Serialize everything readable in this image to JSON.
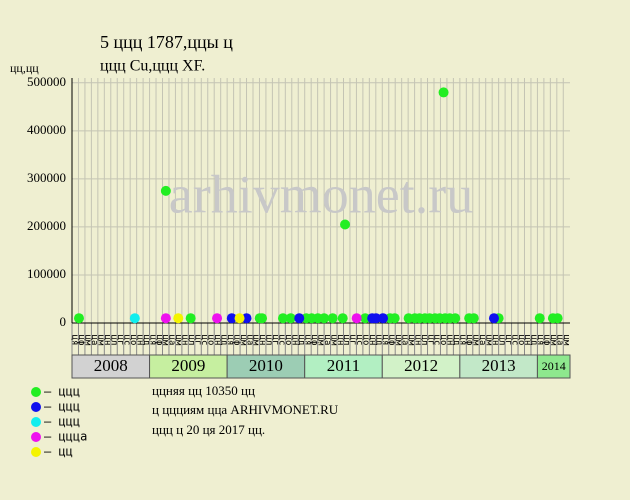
{
  "chart_data": {
    "type": "scatter",
    "title": [
      "5 ццц 1787,ццы ц",
      "ццц Cu,ццц XF."
    ],
    "y_label": "цц,цц",
    "watermark": "arhivmonet.ru",
    "notes": [
      "ццняя цц 10350 цц",
      "ц ццциям цца ARHIVMONET.RU",
      "ццц ц 20 ця 2017 цц."
    ],
    "months": [
      "ця",
      "цф",
      "цм",
      "ца",
      "цм",
      "цн",
      "цл",
      "цг",
      "цс",
      "цо",
      "цн",
      "цд"
    ],
    "xlim": [
      2008,
      2014.42
    ],
    "xticks": [
      2008,
      2009,
      2010,
      2011,
      2012,
      2013,
      2014
    ],
    "year_colors": [
      "#d2d2d2",
      "#c6efa0",
      "#9ccdb4",
      "#b2efc2",
      "#d2f2c8",
      "#c2e8c8",
      "#8ee88e"
    ],
    "ylim": [
      0,
      510000
    ],
    "yticks": [
      0,
      100000,
      200000,
      300000,
      400000,
      500000
    ],
    "grid": true,
    "series": [
      {
        "name": "– ццц",
        "color": "#22ee22",
        "x": [
          2008.09,
          2009.21,
          2009.53,
          2010.42,
          2010.45,
          2010.72,
          2010.82,
          2011.02,
          2011.09,
          2011.17,
          2011.25,
          2011.36,
          2011.49,
          2011.52,
          2011.78,
          2012.1,
          2012.16,
          2012.34,
          2012.42,
          2012.48,
          2012.55,
          2012.61,
          2012.68,
          2012.74,
          2012.79,
          2012.81,
          2012.87,
          2012.94,
          2013.12,
          2013.18,
          2013.5,
          2014.03,
          2014.2,
          2014.26
        ],
        "values": [
          10000,
          275000,
          10000,
          10000,
          10000,
          10000,
          10000,
          10000,
          10000,
          10000,
          10000,
          10000,
          10000,
          205000,
          10000,
          10000,
          10000,
          10000,
          10000,
          10000,
          10000,
          10000,
          10000,
          10000,
          480000,
          10000,
          10000,
          10000,
          10000,
          10000,
          10000,
          10000,
          10000,
          10000
        ]
      },
      {
        "name": "– ццц",
        "color": "#1010ee",
        "x": [
          2010.06,
          2010.25,
          2010.93,
          2011.87,
          2011.92,
          2012.01,
          2013.44
        ],
        "values": [
          10000,
          10000,
          10000,
          10000,
          10000,
          10000,
          10000
        ]
      },
      {
        "name": "– ццц",
        "color": "#11eeee",
        "x": [
          2008.81
        ],
        "values": [
          10000
        ]
      },
      {
        "name": "– ццца",
        "color": "#ee11ee",
        "x": [
          2009.21,
          2009.87,
          2011.67
        ],
        "values": [
          10000,
          10000,
          10000
        ]
      },
      {
        "name": "– цц",
        "color": "#f4f400",
        "x": [
          2009.37,
          2010.16
        ],
        "values": [
          10000,
          10000
        ]
      }
    ]
  }
}
